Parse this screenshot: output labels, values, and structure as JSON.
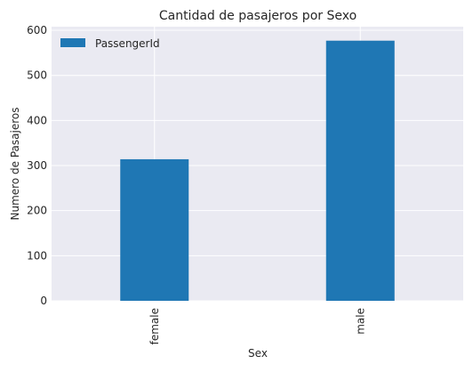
{
  "chart_data": {
    "type": "bar",
    "title": "Cantidad de pasajeros por Sexo",
    "xlabel": "Sex",
    "ylabel": "Numero de Pasajeros",
    "categories": [
      "female",
      "male"
    ],
    "series": [
      {
        "name": "PassengerId",
        "values": [
          314,
          577
        ],
        "color": "#1f77b4"
      }
    ],
    "ylim": [
      0,
      608
    ],
    "yticks": [
      0,
      100,
      200,
      300,
      400,
      500,
      600
    ],
    "grid": true,
    "legend_position": "top-left",
    "background_color": "#eaeaf2"
  }
}
